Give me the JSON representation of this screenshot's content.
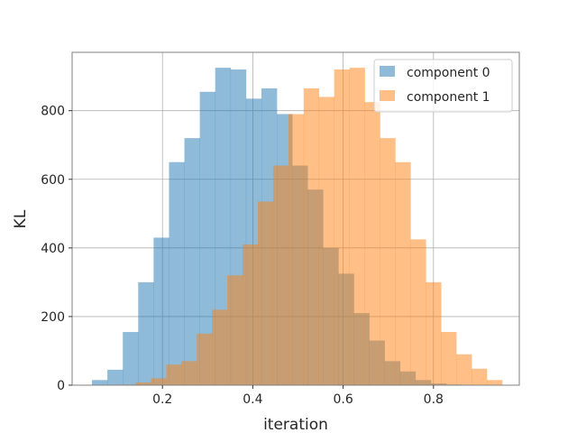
{
  "chart_data": {
    "type": "bar",
    "subtype": "overlapping-histogram",
    "xlabel": "iteration",
    "ylabel": "KL",
    "xlim": [
      0.0,
      0.99
    ],
    "ylim": [
      0,
      970
    ],
    "xticks": [
      0.2,
      0.4,
      0.6,
      0.8
    ],
    "xtick_labels": [
      "0.2",
      "0.4",
      "0.6",
      "0.8"
    ],
    "yticks": [
      0,
      200,
      400,
      600,
      800
    ],
    "ytick_labels": [
      "0",
      "200",
      "400",
      "600",
      "800"
    ],
    "grid": true,
    "legend_position": "top-right",
    "series": [
      {
        "name": "component 0",
        "color": "#1f77b4",
        "alpha": 0.5,
        "bin_start": 0.044,
        "bin_width": 0.0341,
        "values": [
          15,
          45,
          155,
          300,
          430,
          650,
          720,
          855,
          925,
          920,
          835,
          865,
          790,
          640,
          570,
          400,
          325,
          210,
          130,
          70,
          40,
          15,
          5,
          2,
          0,
          0
        ]
      },
      {
        "name": "component 1",
        "color": "#ff7f0e",
        "alpha": 0.5,
        "bin_start": 0.107,
        "bin_width": 0.0338,
        "values": [
          2,
          8,
          20,
          60,
          70,
          150,
          220,
          320,
          410,
          535,
          640,
          790,
          865,
          840,
          920,
          925,
          825,
          720,
          650,
          425,
          300,
          155,
          90,
          48,
          15
        ]
      }
    ]
  }
}
